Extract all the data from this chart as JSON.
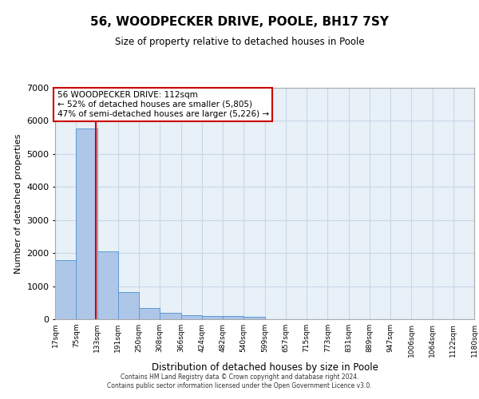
{
  "title": "56, WOODPECKER DRIVE, POOLE, BH17 7SY",
  "subtitle": "Size of property relative to detached houses in Poole",
  "xlabel": "Distribution of detached houses by size in Poole",
  "ylabel": "Number of detached properties",
  "bin_labels": [
    "17sqm",
    "75sqm",
    "133sqm",
    "191sqm",
    "250sqm",
    "308sqm",
    "366sqm",
    "424sqm",
    "482sqm",
    "540sqm",
    "599sqm",
    "657sqm",
    "715sqm",
    "773sqm",
    "831sqm",
    "889sqm",
    "947sqm",
    "1006sqm",
    "1064sqm",
    "1122sqm",
    "1180sqm"
  ],
  "bin_edges": [
    0,
    1,
    2,
    3,
    4,
    5,
    6,
    7,
    8,
    9,
    10,
    11,
    12,
    13,
    14,
    15,
    16,
    17,
    18,
    19,
    20
  ],
  "bar_heights": [
    1780,
    5780,
    2060,
    820,
    340,
    195,
    120,
    105,
    95,
    75,
    0,
    0,
    0,
    0,
    0,
    0,
    0,
    0,
    0,
    0
  ],
  "bar_color": "#aec6e8",
  "bar_edge_color": "#5b9bd5",
  "vline_x": 1.93,
  "vline_color": "#cc0000",
  "annotation_text": "56 WOODPECKER DRIVE: 112sqm\n← 52% of detached houses are smaller (5,805)\n47% of semi-detached houses are larger (5,226) →",
  "annotation_box_color": "#cc0000",
  "ylim": [
    0,
    7000
  ],
  "yticks": [
    0,
    1000,
    2000,
    3000,
    4000,
    5000,
    6000,
    7000
  ],
  "grid_color": "#c8d8e8",
  "background_color": "#e8f0f8",
  "footer_line1": "Contains HM Land Registry data © Crown copyright and database right 2024.",
  "footer_line2": "Contains public sector information licensed under the Open Government Licence v3.0."
}
